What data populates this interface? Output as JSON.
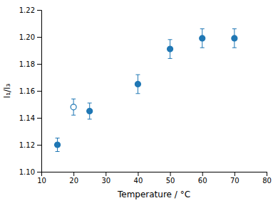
{
  "chart_data": {
    "type": "scatter",
    "x_label": "Temperature / °C",
    "y_label": "I₁/I₃",
    "series": [
      {
        "x": [
          15,
          25,
          40,
          50,
          60,
          70
        ],
        "values": [
          1.12,
          1.145,
          1.165,
          1.191,
          1.199,
          1.199
        ],
        "errors": [
          0.005,
          0.006,
          0.007,
          0.007,
          0.007,
          0.007
        ],
        "marker": "circle"
      },
      {
        "x": [
          20
        ],
        "values": [
          1.148
        ],
        "errors": [
          0.006
        ],
        "marker": "circle-open"
      }
    ],
    "xlim": [
      10,
      80
    ],
    "ylim": [
      1.1,
      1.22
    ],
    "xticks": [
      10,
      20,
      30,
      40,
      50,
      60,
      70,
      80
    ],
    "yticks": [
      {
        "value": 1.1,
        "label": "1.10"
      },
      1.12,
      1.14,
      1.16,
      1.18,
      {
        "value": 1.2,
        "label": "1.20"
      },
      1.22
    ],
    "grid": false
  }
}
